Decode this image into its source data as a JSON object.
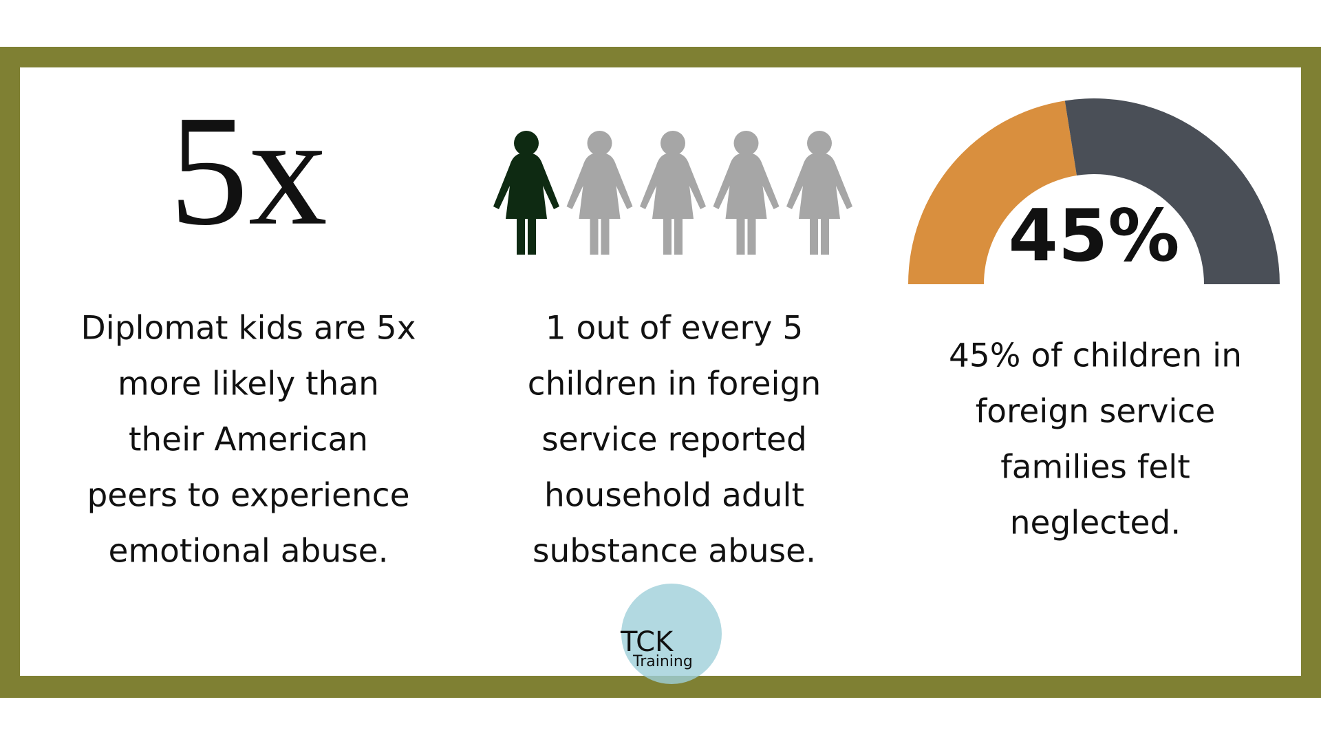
{
  "stats": [
    {
      "headline": "5x",
      "text": [
        "Diplomat kids are 5x",
        "more likely than",
        "their American",
        "peers to experience",
        "emotional abuse."
      ]
    },
    {
      "icons": {
        "highlighted": 1,
        "total": 5
      },
      "text": [
        "1 out of every 5",
        "children in foreign",
        "service reported",
        "household adult",
        "substance abuse."
      ]
    },
    {
      "gauge": {
        "value": 45,
        "label": "45%"
      },
      "text": [
        "45% of children in",
        "foreign service",
        "families felt",
        "neglected."
      ]
    }
  ],
  "logo": {
    "mark": "TCK",
    "name": "Training"
  }
}
